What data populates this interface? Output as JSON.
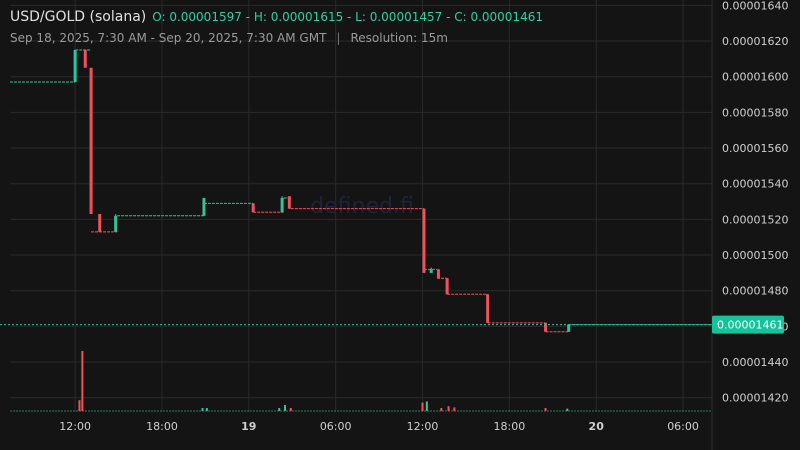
{
  "header": {
    "symbol": "USD/GOLD (solana)",
    "ohlc": "O: 0.00001597 - H: 0.00001615 - L: 0.00001457 - C: 0.00001461",
    "range": "Sep 18, 2025, 7:30 AM - Sep 20, 2025, 7:30 AM GMT",
    "separator": "|",
    "resolution": "Resolution: 15m"
  },
  "watermark": "defined.fi",
  "colors": {
    "background": "#141414",
    "up": "#2ec4a0",
    "down": "#f0525a",
    "grid": "#2a2a2a",
    "last_price_bg": "#15c39a"
  },
  "chart_data": {
    "type": "candlestick",
    "y_ticks": [
      "0.00001640",
      "0.00001620",
      "0.00001600",
      "0.00001580",
      "0.00001560",
      "0.00001540",
      "0.00001520",
      "0.00001500",
      "0.00001480",
      "0.00001460",
      "0.00001440",
      "0.00001420"
    ],
    "ylim": [
      1.412e-05,
      1.643e-05
    ],
    "x_ticks": [
      {
        "label": "12:00",
        "t": 4.5,
        "bold": false
      },
      {
        "label": "18:00",
        "t": 10.5,
        "bold": false
      },
      {
        "label": "19",
        "t": 16.5,
        "bold": true
      },
      {
        "label": "06:00",
        "t": 22.5,
        "bold": false
      },
      {
        "label": "12:00",
        "t": 28.5,
        "bold": false
      },
      {
        "label": "18:00",
        "t": 34.5,
        "bold": false
      },
      {
        "label": "20",
        "t": 40.5,
        "bold": true
      },
      {
        "label": "06:00",
        "t": 46.5,
        "bold": false
      }
    ],
    "xlim": [
      0,
      48.5
    ],
    "last_price": "0.00001461",
    "segments": [
      {
        "t0": 0,
        "t1": 4.5,
        "price": 1.597e-05,
        "dir": "up"
      },
      {
        "t0": 4.5,
        "t1": 5.6,
        "price": 1.615e-05,
        "dir": "up"
      },
      {
        "t0": 5.6,
        "t1": 7.4,
        "price": 1.513e-05,
        "dir": "down"
      },
      {
        "t0": 7.4,
        "t1": 13.4,
        "price": 1.522e-05,
        "dir": "up"
      },
      {
        "t0": 13.4,
        "t1": 16.8,
        "price": 1.529e-05,
        "dir": "up"
      },
      {
        "t0": 16.8,
        "t1": 18.9,
        "price": 1.524e-05,
        "dir": "down"
      },
      {
        "t0": 18.9,
        "t1": 19.4,
        "price": 1.532e-05,
        "dir": "up"
      },
      {
        "t0": 19.4,
        "t1": 28.6,
        "price": 1.526e-05,
        "dir": "down"
      },
      {
        "t0": 28.6,
        "t1": 29.5,
        "price": 1.492e-05,
        "dir": "down"
      },
      {
        "t0": 29.5,
        "t1": 30.2,
        "price": 1.487e-05,
        "dir": "down"
      },
      {
        "t0": 30.2,
        "t1": 33.0,
        "price": 1.478e-05,
        "dir": "down"
      },
      {
        "t0": 33.0,
        "t1": 37.0,
        "price": 1.462e-05,
        "dir": "down"
      },
      {
        "t0": 37.0,
        "t1": 38.6,
        "price": 1.457e-05,
        "dir": "down"
      },
      {
        "t0": 38.6,
        "t1": 48.5,
        "price": 1.461e-05,
        "dir": "up"
      }
    ],
    "candles": [
      {
        "t": 4.5,
        "open": 1.597e-05,
        "close": 1.615e-05,
        "high": 1.615e-05,
        "low": 1.597e-05
      },
      {
        "t": 5.2,
        "open": 1.615e-05,
        "close": 1.605e-05,
        "high": 1.615e-05,
        "low": 1.605e-05
      },
      {
        "t": 5.6,
        "open": 1.605e-05,
        "close": 1.523e-05,
        "high": 1.605e-05,
        "low": 1.523e-05
      },
      {
        "t": 6.2,
        "open": 1.523e-05,
        "close": 1.513e-05,
        "high": 1.523e-05,
        "low": 1.513e-05
      },
      {
        "t": 7.3,
        "open": 1.513e-05,
        "close": 1.522e-05,
        "high": 1.523e-05,
        "low": 1.513e-05
      },
      {
        "t": 13.4,
        "open": 1.522e-05,
        "close": 1.532e-05,
        "high": 1.532e-05,
        "low": 1.522e-05
      },
      {
        "t": 16.8,
        "open": 1.529e-05,
        "close": 1.524e-05,
        "high": 1.529e-05,
        "low": 1.524e-05
      },
      {
        "t": 18.8,
        "open": 1.524e-05,
        "close": 1.532e-05,
        "high": 1.533e-05,
        "low": 1.524e-05
      },
      {
        "t": 19.3,
        "open": 1.533e-05,
        "close": 1.526e-05,
        "high": 1.533e-05,
        "low": 1.526e-05
      },
      {
        "t": 28.6,
        "open": 1.526e-05,
        "close": 1.49e-05,
        "high": 1.526e-05,
        "low": 1.49e-05
      },
      {
        "t": 29.1,
        "open": 1.49e-05,
        "close": 1.492e-05,
        "high": 1.493e-05,
        "low": 1.49e-05
      },
      {
        "t": 29.6,
        "open": 1.492e-05,
        "close": 1.487e-05,
        "high": 1.492e-05,
        "low": 1.487e-05
      },
      {
        "t": 30.2,
        "open": 1.487e-05,
        "close": 1.478e-05,
        "high": 1.487e-05,
        "low": 1.478e-05
      },
      {
        "t": 33.0,
        "open": 1.478e-05,
        "close": 1.462e-05,
        "high": 1.478e-05,
        "low": 1.462e-05
      },
      {
        "t": 37.0,
        "open": 1.462e-05,
        "close": 1.457e-05,
        "high": 1.462e-05,
        "low": 1.457e-05
      },
      {
        "t": 38.6,
        "open": 1.457e-05,
        "close": 1.461e-05,
        "high": 1.461e-05,
        "low": 1.457e-05
      }
    ],
    "volume_max": 1,
    "volume": [
      {
        "t": 4.8,
        "v": 0.18,
        "dir": "down"
      },
      {
        "t": 5.0,
        "v": 1.0,
        "dir": "down"
      },
      {
        "t": 13.3,
        "v": 0.05,
        "dir": "up"
      },
      {
        "t": 13.6,
        "v": 0.05,
        "dir": "up"
      },
      {
        "t": 18.6,
        "v": 0.05,
        "dir": "up"
      },
      {
        "t": 19.0,
        "v": 0.1,
        "dir": "up"
      },
      {
        "t": 19.4,
        "v": 0.05,
        "dir": "down"
      },
      {
        "t": 28.5,
        "v": 0.14,
        "dir": "down"
      },
      {
        "t": 28.8,
        "v": 0.16,
        "dir": "up"
      },
      {
        "t": 29.8,
        "v": 0.05,
        "dir": "down"
      },
      {
        "t": 30.3,
        "v": 0.08,
        "dir": "down"
      },
      {
        "t": 30.7,
        "v": 0.06,
        "dir": "down"
      },
      {
        "t": 37.0,
        "v": 0.05,
        "dir": "down"
      },
      {
        "t": 38.5,
        "v": 0.04,
        "dir": "up"
      }
    ]
  }
}
